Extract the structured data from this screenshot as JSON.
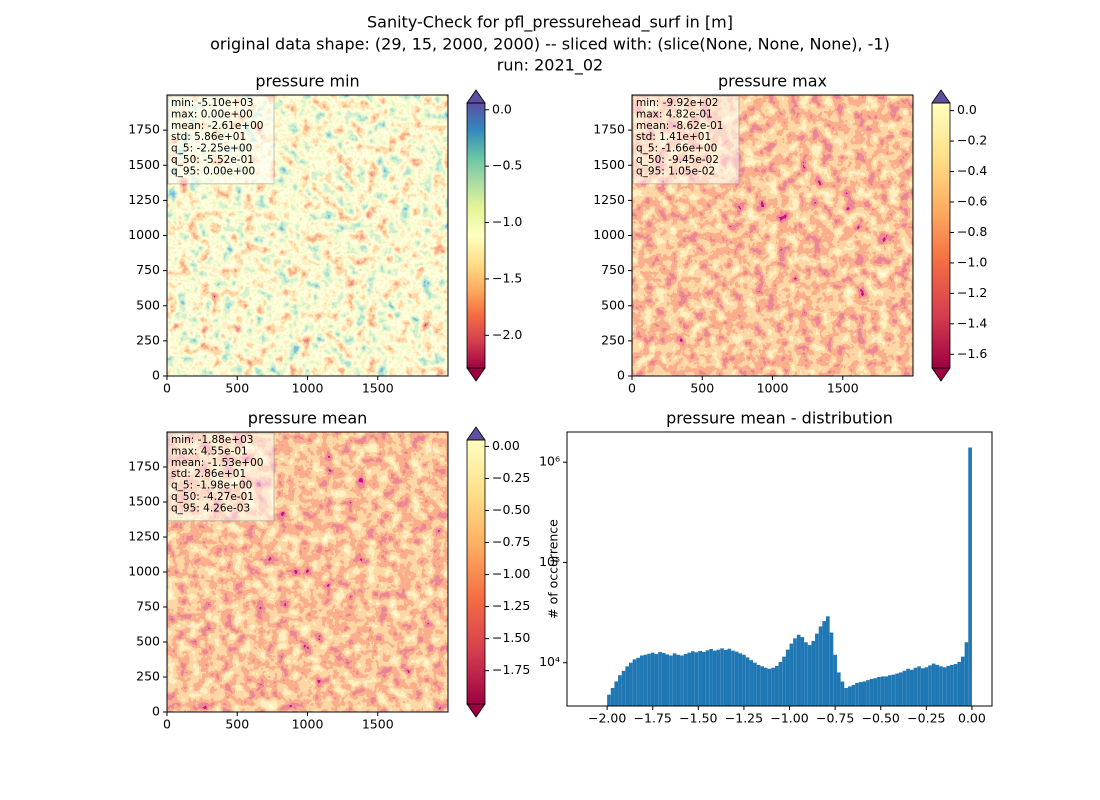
{
  "title": [
    "Sanity-Check for pfl_pressurehead_surf in [m]",
    "original data shape: (29, 15, 2000, 2000) -- sliced with: (slice(None, None, None), -1)",
    "run: 2021_02"
  ],
  "chart_data": [
    {
      "type": "image",
      "title": "pressure min",
      "xlim": [
        0,
        2000
      ],
      "ylim": [
        0,
        2000
      ],
      "xticks": [
        0,
        500,
        1000,
        1500
      ],
      "yticks": [
        0,
        250,
        500,
        750,
        1000,
        1250,
        1500,
        1750
      ],
      "annotation": [
        "min: -5.10e+03",
        "max: 0.00e+00",
        "mean: -2.61e+00",
        "std: 5.86e+01",
        "q_5: -2.25e+00",
        "q_50: -5.52e-01",
        "q_95: 0.00e+00"
      ],
      "colorbar": {
        "lim": [
          -2.29,
          0.06
        ],
        "extend": "both",
        "under_color": "#9e0142",
        "over_color": "#5e4fa2",
        "colors": [
          "#9e0142",
          "#d53e4f",
          "#f46d43",
          "#fdae61",
          "#fee08b",
          "#ffffbf",
          "#e6f598",
          "#abdda4",
          "#66c2a5",
          "#3288bd",
          "#5e4fa2"
        ],
        "ticks": [
          {
            "value": 0.0,
            "label": "0.0"
          },
          {
            "value": -0.5,
            "label": "−0.5"
          },
          {
            "value": -1.0,
            "label": "−1.0"
          },
          {
            "value": -1.5,
            "label": "−1.5"
          },
          {
            "value": -2.0,
            "label": "−2.0"
          }
        ]
      }
    },
    {
      "type": "image",
      "title": "pressure max",
      "xlim": [
        0,
        2000
      ],
      "ylim": [
        0,
        2000
      ],
      "xticks": [
        0,
        500,
        1000,
        1500
      ],
      "yticks": [
        0,
        250,
        500,
        750,
        1000,
        1250,
        1500,
        1750
      ],
      "annotation": [
        "min: -9.92e+02",
        "max: 4.82e-01",
        "mean: -8.62e-01",
        "std: 1.41e+01",
        "q_5: -1.66e+00",
        "q_50: -9.45e-02",
        "q_95: 1.05e-02"
      ],
      "colorbar": {
        "lim": [
          -1.69,
          0.05
        ],
        "extend": "both",
        "under_color": "#9e0142",
        "over_color": "#5e4fa2",
        "colors": [
          "#9e0142",
          "#d53e4f",
          "#f46d43",
          "#fdae61",
          "#fee08b",
          "#ffffbf"
        ],
        "ticks": [
          {
            "value": 0.0,
            "label": "0.0"
          },
          {
            "value": -0.2,
            "label": "−0.2"
          },
          {
            "value": -0.4,
            "label": "−0.4"
          },
          {
            "value": -0.6,
            "label": "−0.6"
          },
          {
            "value": -0.8,
            "label": "−0.8"
          },
          {
            "value": -1.0,
            "label": "−1.0"
          },
          {
            "value": -1.2,
            "label": "−1.2"
          },
          {
            "value": -1.4,
            "label": "−1.4"
          },
          {
            "value": -1.6,
            "label": "−1.6"
          }
        ]
      }
    },
    {
      "type": "image",
      "title": "pressure mean",
      "xlim": [
        0,
        2000
      ],
      "ylim": [
        0,
        2000
      ],
      "xticks": [
        0,
        500,
        1000,
        1500
      ],
      "yticks": [
        0,
        250,
        500,
        750,
        1000,
        1250,
        1500,
        1750
      ],
      "annotation": [
        "min: -1.88e+03",
        "max: 4.55e-01",
        "mean: -1.53e+00",
        "std: 2.86e+01",
        "q_5: -1.98e+00",
        "q_50: -4.27e-01",
        "q_95: 4.26e-03"
      ],
      "colorbar": {
        "lim": [
          -2.01,
          0.05
        ],
        "extend": "both",
        "under_color": "#9e0142",
        "over_color": "#5e4fa2",
        "colors": [
          "#9e0142",
          "#d53e4f",
          "#f46d43",
          "#fdae61",
          "#fee08b",
          "#ffffbf"
        ],
        "ticks": [
          {
            "value": 0.0,
            "label": "0.00"
          },
          {
            "value": -0.25,
            "label": "−0.25"
          },
          {
            "value": -0.5,
            "label": "−0.50"
          },
          {
            "value": -0.75,
            "label": "−0.75"
          },
          {
            "value": -1.0,
            "label": "−1.00"
          },
          {
            "value": -1.25,
            "label": "−1.25"
          },
          {
            "value": -1.5,
            "label": "−1.50"
          },
          {
            "value": -1.75,
            "label": "−1.75"
          }
        ]
      }
    },
    {
      "type": "histogram",
      "title": "pressure mean - distribution",
      "y_label": "# of occurrence",
      "color": "#1f77b4",
      "log_y": true,
      "xlim": [
        -2.22,
        0.11
      ],
      "ylim": [
        3700,
        2000000
      ],
      "xticks": [
        {
          "value": -2.0,
          "label": "−2.00"
        },
        {
          "value": -1.75,
          "label": "−1.75"
        },
        {
          "value": -1.5,
          "label": "−1.50"
        },
        {
          "value": -1.25,
          "label": "−1.25"
        },
        {
          "value": -1.0,
          "label": "−1.00"
        },
        {
          "value": -0.75,
          "label": "−0.75"
        },
        {
          "value": -0.5,
          "label": "−0.50"
        },
        {
          "value": -0.25,
          "label": "−0.25"
        },
        {
          "value": 0.0,
          "label": "0.00"
        }
      ],
      "yticks": [
        {
          "value": 10000,
          "label": "10⁴"
        },
        {
          "value": 100000,
          "label": "10⁵"
        },
        {
          "value": 1000000,
          "label": "10⁶"
        }
      ],
      "bins": [
        -2.0,
        -1.98,
        -1.96,
        -1.94,
        -1.92,
        -1.9,
        -1.88,
        -1.86,
        -1.84,
        -1.82,
        -1.8,
        -1.78,
        -1.76,
        -1.74,
        -1.72,
        -1.7,
        -1.68,
        -1.66,
        -1.64,
        -1.62,
        -1.6,
        -1.58,
        -1.56,
        -1.54,
        -1.52,
        -1.5,
        -1.48,
        -1.46,
        -1.44,
        -1.42,
        -1.4,
        -1.38,
        -1.36,
        -1.34,
        -1.32,
        -1.3,
        -1.28,
        -1.26,
        -1.24,
        -1.22,
        -1.2,
        -1.18,
        -1.16,
        -1.14,
        -1.12,
        -1.1,
        -1.08,
        -1.06,
        -1.04,
        -1.02,
        -1.0,
        -0.98,
        -0.96,
        -0.94,
        -0.92,
        -0.9,
        -0.88,
        -0.86,
        -0.84,
        -0.82,
        -0.8,
        -0.78,
        -0.76,
        -0.74,
        -0.72,
        -0.7,
        -0.68,
        -0.66,
        -0.64,
        -0.62,
        -0.6,
        -0.58,
        -0.56,
        -0.54,
        -0.52,
        -0.5,
        -0.48,
        -0.46,
        -0.44,
        -0.42,
        -0.4,
        -0.38,
        -0.36,
        -0.34,
        -0.32,
        -0.3,
        -0.28,
        -0.26,
        -0.24,
        -0.22,
        -0.2,
        -0.18,
        -0.16,
        -0.14,
        -0.12,
        -0.1,
        -0.08,
        -0.06,
        -0.04,
        -0.02,
        0.0
      ],
      "values": [
        4800,
        5600,
        6500,
        7500,
        8300,
        9200,
        10000,
        10800,
        11200,
        11800,
        12000,
        12300,
        12600,
        12200,
        12800,
        12500,
        12100,
        11800,
        12400,
        12000,
        11800,
        12200,
        12600,
        13000,
        12700,
        13100,
        12800,
        13300,
        13700,
        13200,
        13500,
        13900,
        13400,
        13800,
        13200,
        12900,
        12400,
        12000,
        11300,
        10600,
        10000,
        9500,
        9200,
        8900,
        8700,
        8900,
        9300,
        10200,
        11500,
        13500,
        15500,
        17500,
        19000,
        18000,
        16000,
        15000,
        16500,
        19500,
        23000,
        26000,
        29000,
        20000,
        12000,
        8000,
        6500,
        5600,
        5800,
        6000,
        6300,
        6400,
        6500,
        6700,
        6900,
        7000,
        7200,
        7300,
        7300,
        7500,
        7600,
        7800,
        8000,
        8300,
        8700,
        8500,
        8900,
        9200,
        8800,
        9000,
        9400,
        9800,
        9500,
        9200,
        9000,
        9300,
        9500,
        9700,
        10200,
        11500,
        16000,
        1400000
      ]
    }
  ]
}
